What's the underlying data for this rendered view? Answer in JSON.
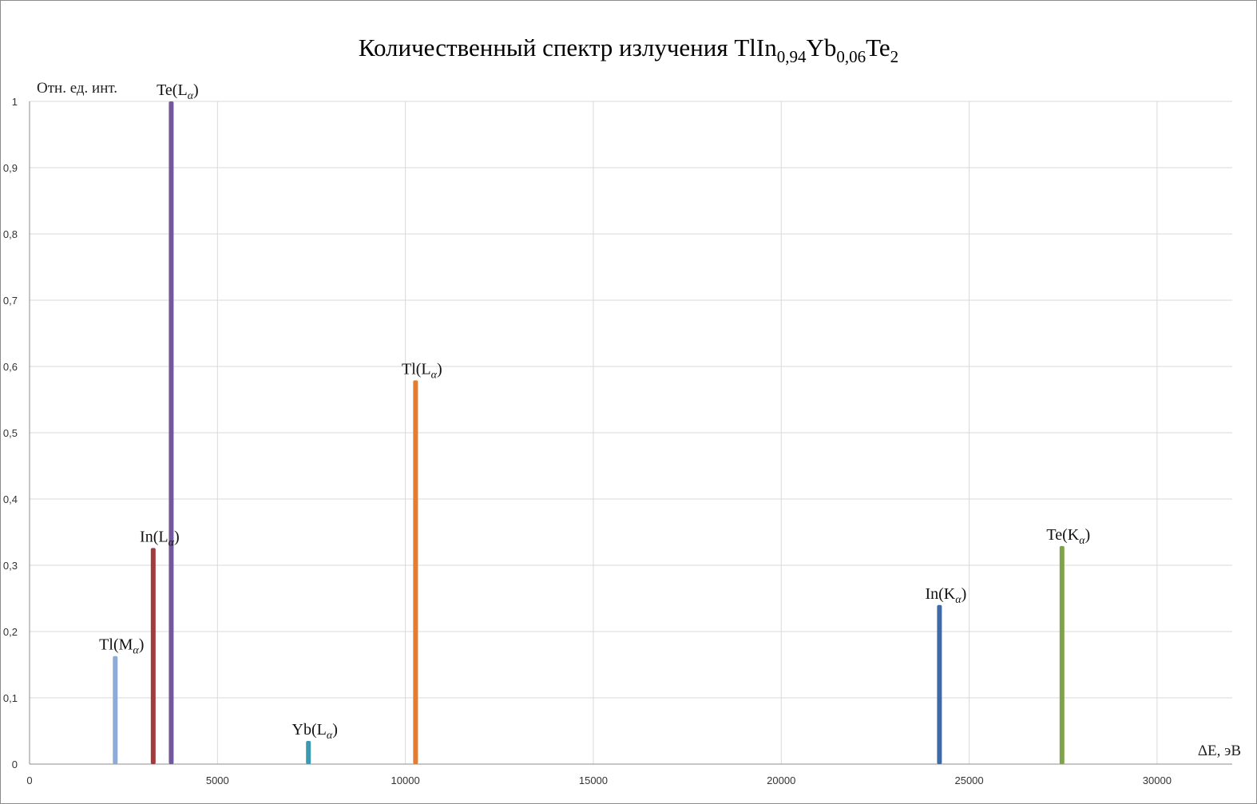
{
  "chart_data": {
    "type": "bar",
    "title": {
      "main": "Количественный спектр излучения TlIn",
      "sub1": "0,94",
      "mid": "Yb",
      "sub2": "0,06",
      "end": "Te",
      "sub3": "2"
    },
    "ylabel": "Отн. ед. инт.",
    "xlabel": "ΔE, эВ",
    "xlim": [
      0,
      32000
    ],
    "ylim": [
      0,
      1
    ],
    "x_ticks": [
      "0",
      "5000",
      "10000",
      "15000",
      "20000",
      "25000",
      "30000"
    ],
    "y_ticks": [
      "0",
      "0,1",
      "0,2",
      "0,3",
      "0,4",
      "0,5",
      "0,6",
      "0,7",
      "0,8",
      "0,9",
      "1"
    ],
    "grid": true,
    "legend": "none",
    "peaks": [
      {
        "base": "Tl(M",
        "greek": "α",
        "close": ")",
        "x": 2280,
        "y": 0.163,
        "color": "#8eaad6"
      },
      {
        "base": "In(L",
        "greek": "α",
        "close": ")",
        "x": 3290,
        "y": 0.326,
        "color": "#a23b3b"
      },
      {
        "base": "Te(L",
        "greek": "α",
        "close": ")",
        "x": 3770,
        "y": 1.0,
        "color": "#73589c"
      },
      {
        "base": "Yb(L",
        "greek": "α",
        "close": ")",
        "x": 7420,
        "y": 0.035,
        "color": "#3a9ab0"
      },
      {
        "base": "Tl(L",
        "greek": "α",
        "close": ")",
        "x": 10270,
        "y": 0.579,
        "color": "#e37d34"
      },
      {
        "base": "In(K",
        "greek": "α",
        "close": ")",
        "x": 24210,
        "y": 0.24,
        "color": "#3f6aa5"
      },
      {
        "base": "Te(K",
        "greek": "α",
        "close": ")",
        "x": 27470,
        "y": 0.329,
        "color": "#7fa34a"
      }
    ]
  }
}
